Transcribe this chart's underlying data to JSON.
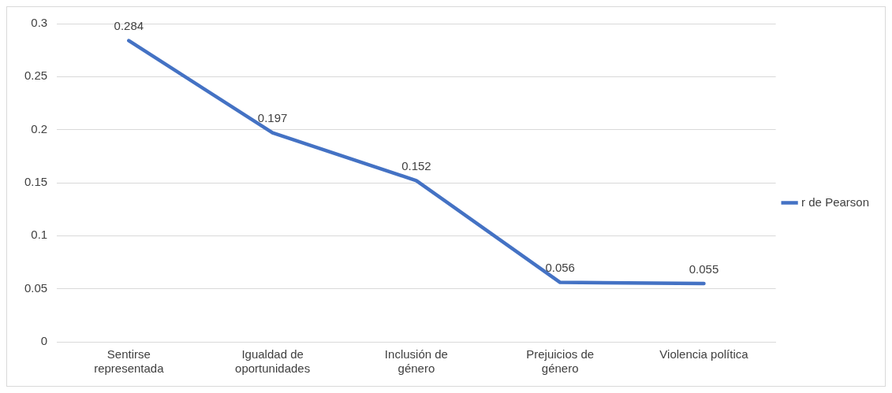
{
  "chart_data": {
    "type": "line",
    "categories": [
      "Sentirse representada",
      "Igualdad de oportunidades",
      "Inclusión de género",
      "Prejuicios de género",
      "Violencia política"
    ],
    "series": [
      {
        "name": "r de Pearson",
        "color": "#4472c4",
        "values": [
          0.284,
          0.197,
          0.152,
          0.056,
          0.055
        ]
      }
    ],
    "ylim": [
      0,
      0.3
    ],
    "yticks": [
      0,
      0.05,
      0.1,
      0.15,
      0.2,
      0.25,
      0.3
    ],
    "grid": "y",
    "legend": "right",
    "data_labels": true,
    "marker": "none",
    "line_style": "solid"
  }
}
